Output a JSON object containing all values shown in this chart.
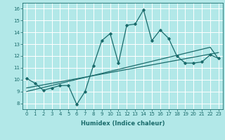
{
  "xlabel": "Humidex (Indice chaleur)",
  "x_data": [
    0,
    1,
    2,
    3,
    4,
    5,
    6,
    7,
    8,
    9,
    10,
    11,
    12,
    13,
    14,
    15,
    16,
    17,
    18,
    19,
    20,
    21,
    22,
    23
  ],
  "y_main": [
    10.1,
    9.7,
    9.1,
    9.3,
    9.5,
    9.5,
    7.9,
    9.0,
    11.2,
    13.3,
    13.9,
    11.4,
    14.6,
    14.7,
    15.9,
    13.3,
    14.2,
    13.5,
    12.0,
    11.4,
    11.4,
    11.5,
    12.1,
    11.8
  ],
  "y_reg1": [
    9.0,
    9.17,
    9.34,
    9.51,
    9.68,
    9.85,
    10.02,
    10.19,
    10.36,
    10.53,
    10.7,
    10.87,
    11.04,
    11.21,
    11.38,
    11.55,
    11.72,
    11.89,
    12.06,
    12.23,
    12.4,
    12.57,
    12.74,
    11.75
  ],
  "y_reg2": [
    9.3,
    9.43,
    9.56,
    9.69,
    9.82,
    9.95,
    10.08,
    10.21,
    10.34,
    10.47,
    10.6,
    10.73,
    10.86,
    10.99,
    11.12,
    11.25,
    11.38,
    11.51,
    11.64,
    11.77,
    11.9,
    12.03,
    12.16,
    12.29
  ],
  "xlim": [
    -0.5,
    23.5
  ],
  "ylim": [
    7.5,
    16.5
  ],
  "yticks": [
    8,
    9,
    10,
    11,
    12,
    13,
    14,
    15,
    16
  ],
  "xticks": [
    0,
    1,
    2,
    3,
    4,
    5,
    6,
    7,
    8,
    9,
    10,
    11,
    12,
    13,
    14,
    15,
    16,
    17,
    18,
    19,
    20,
    21,
    22,
    23
  ],
  "line_color": "#1a6b6b",
  "bg_color": "#b2e8e8",
  "grid_color": "#ffffff",
  "marker": "D",
  "marker_size": 1.8,
  "linewidth": 0.9,
  "tick_fontsize": 5.0,
  "xlabel_fontsize": 6.0
}
